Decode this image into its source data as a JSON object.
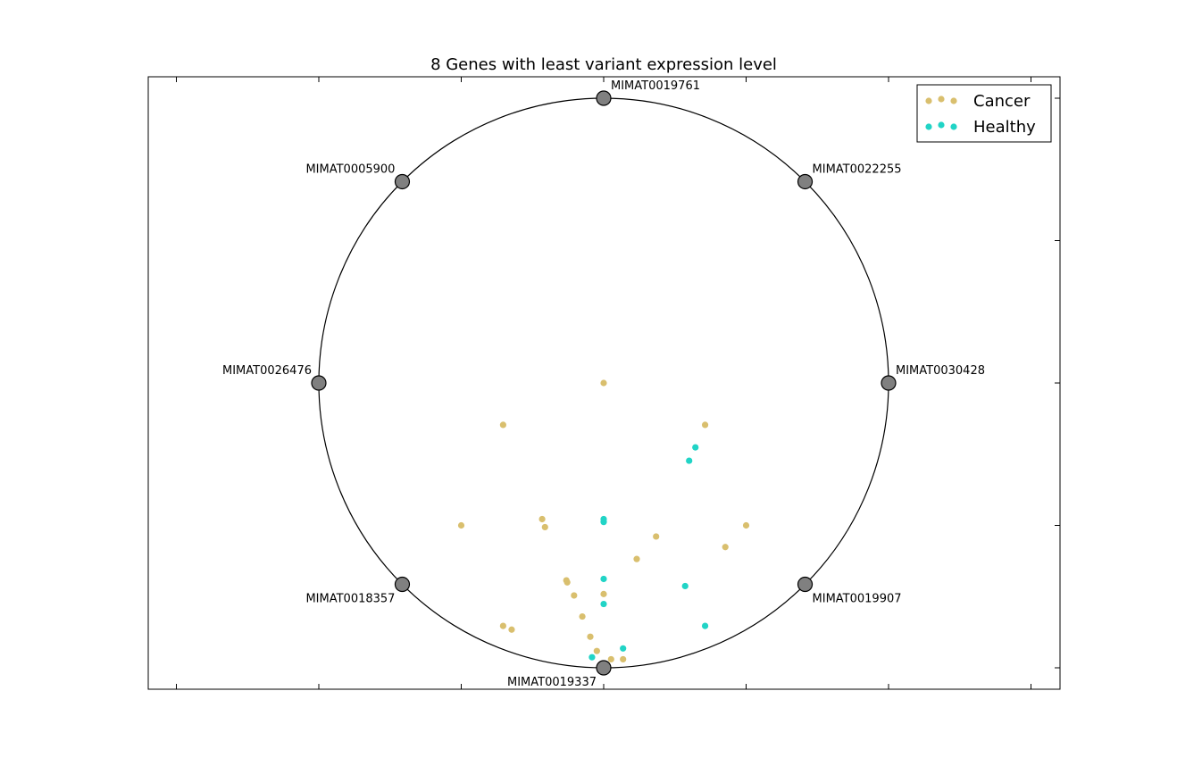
{
  "chart_data": {
    "type": "scatter",
    "subtype": "radviz",
    "title": "8 Genes with least variant expression level",
    "xlabel": "",
    "ylabel": "",
    "xlim": [
      -1.6,
      1.6
    ],
    "ylim": [
      -1.08,
      1.08
    ],
    "grid": false,
    "legend_position": "top-right",
    "anchor_color": "#808080",
    "anchors": [
      {
        "label": "MIMAT0030428",
        "x": 1.0,
        "y": 0.0
      },
      {
        "label": "MIMAT0022255",
        "x": 0.707,
        "y": 0.707
      },
      {
        "label": "MIMAT0019761",
        "x": 0.0,
        "y": 1.0
      },
      {
        "label": "MIMAT0005900",
        "x": -0.707,
        "y": 0.707
      },
      {
        "label": "MIMAT0026476",
        "x": -1.0,
        "y": 0.0
      },
      {
        "label": "MIMAT0018357",
        "x": -0.707,
        "y": -0.707
      },
      {
        "label": "MIMAT0019337",
        "x": 0.0,
        "y": -1.0
      },
      {
        "label": "MIMAT0019907",
        "x": 0.707,
        "y": -0.707
      }
    ],
    "series": [
      {
        "name": "Cancer",
        "color": "#d9bf6e",
        "points": [
          [
            0.0,
            0.0
          ],
          [
            -0.353,
            -0.147
          ],
          [
            0.356,
            -0.147
          ],
          [
            -0.5,
            -0.5
          ],
          [
            -0.216,
            -0.478
          ],
          [
            -0.206,
            -0.506
          ],
          [
            0.184,
            -0.539
          ],
          [
            0.5,
            -0.5
          ],
          [
            0.427,
            -0.576
          ],
          [
            0.116,
            -0.618
          ],
          [
            -0.131,
            -0.693
          ],
          [
            -0.128,
            -0.7
          ],
          [
            0.0,
            -0.741
          ],
          [
            -0.104,
            -0.746
          ],
          [
            -0.075,
            -0.82
          ],
          [
            -0.353,
            -0.853
          ],
          [
            -0.323,
            -0.866
          ],
          [
            -0.047,
            -0.891
          ],
          [
            -0.024,
            -0.941
          ],
          [
            0.026,
            -0.97
          ],
          [
            0.068,
            -0.97
          ]
        ]
      },
      {
        "name": "Healthy",
        "color": "#21d4c6",
        "points": [
          [
            0.322,
            -0.226
          ],
          [
            0.3,
            -0.273
          ],
          [
            0.0,
            -0.478
          ],
          [
            0.0,
            -0.488
          ],
          [
            0.0,
            -0.688
          ],
          [
            0.286,
            -0.713
          ],
          [
            0.0,
            -0.776
          ],
          [
            0.356,
            -0.853
          ],
          [
            0.068,
            -0.932
          ],
          [
            -0.041,
            -0.963
          ]
        ]
      }
    ]
  }
}
